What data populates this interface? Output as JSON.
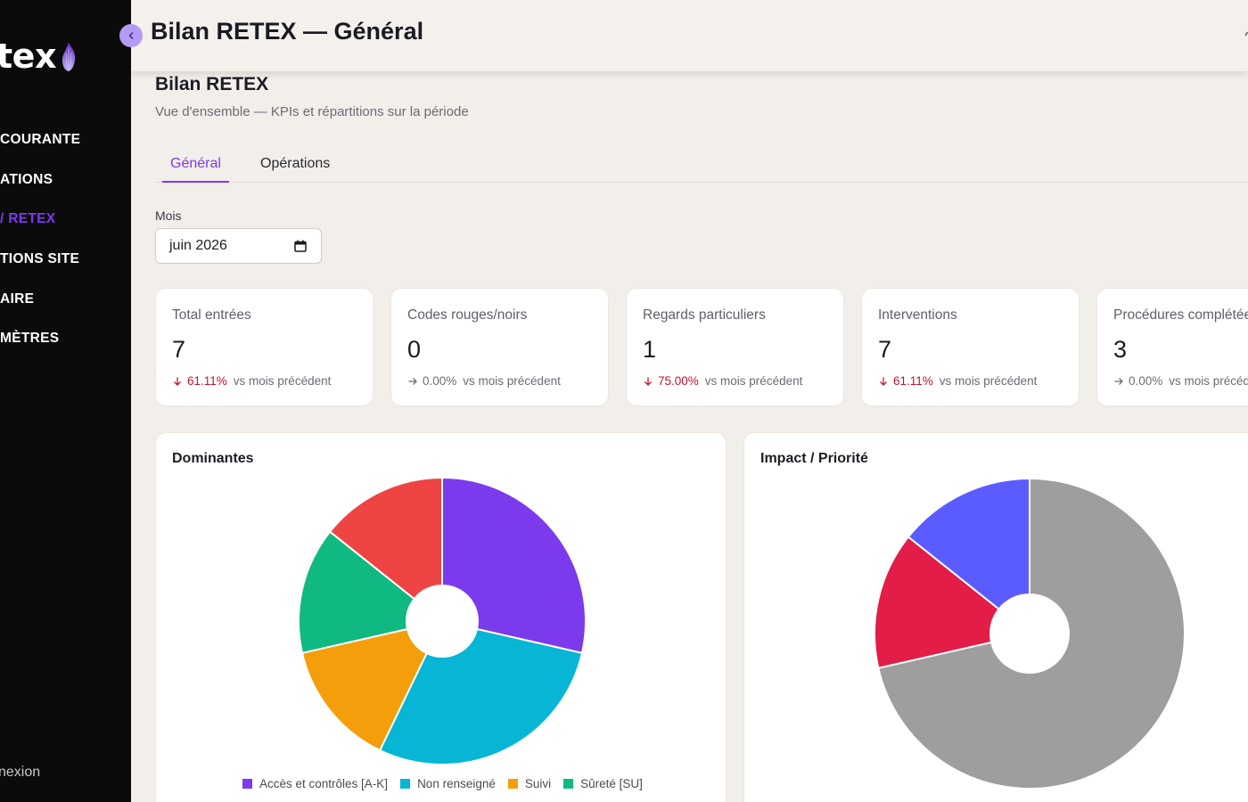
{
  "app": {
    "logo_text": "tex"
  },
  "sidebar": {
    "items": [
      {
        "label": "COURANTE",
        "active": false
      },
      {
        "label": "ATIONS",
        "active": false
      },
      {
        "label": "/ RETEX",
        "active": true
      },
      {
        "label": "TIONS SITE",
        "active": false
      },
      {
        "label": "AIRE",
        "active": false
      },
      {
        "label": "MÈTRES",
        "active": false
      }
    ],
    "logout_label": "nexion"
  },
  "header": {
    "title": "Bilan RETEX — Général"
  },
  "page": {
    "title": "Bilan RETEX",
    "subtitle": "Vue d'ensemble — KPIs et répartitions sur la période"
  },
  "tabs": [
    {
      "label": "Général",
      "active": true
    },
    {
      "label": "Opérations",
      "active": false
    }
  ],
  "filter": {
    "label": "Mois",
    "value": "juin 2026"
  },
  "kpis": [
    {
      "label": "Total entrées",
      "value": "7",
      "trend": "down",
      "pct": "61.11%",
      "context": "vs mois précédent"
    },
    {
      "label": "Codes rouges/noirs",
      "value": "0",
      "trend": "flat",
      "pct": "0.00%",
      "context": "vs mois précédent"
    },
    {
      "label": "Regards particuliers",
      "value": "1",
      "trend": "down",
      "pct": "75.00%",
      "context": "vs mois précédent"
    },
    {
      "label": "Interventions",
      "value": "7",
      "trend": "down",
      "pct": "61.11%",
      "context": "vs mois précédent"
    },
    {
      "label": "Procédures complétées",
      "value": "3",
      "trend": "flat",
      "pct": "0.00%",
      "context": "vs mois précédent"
    }
  ],
  "colors": {
    "accent": "#7c3aed",
    "trend_down": "#c8102e",
    "trend_flat": "#6b6b75"
  },
  "chart_data": [
    {
      "type": "pie",
      "title": "Dominantes",
      "donut": true,
      "legend_position": "bottom",
      "slices": [
        {
          "label": "Accès et contrôles [A-K]",
          "value": 2,
          "color": "#7c3aed"
        },
        {
          "label": "Non renseigné",
          "value": 2,
          "color": "#06b6d4"
        },
        {
          "label": "Suivi",
          "value": 1,
          "color": "#f59e0b"
        },
        {
          "label": "Sûreté [SU]",
          "value": 1,
          "color": "#10b981"
        },
        {
          "label": "",
          "value": 1,
          "color": "#ef4444"
        }
      ]
    },
    {
      "type": "pie",
      "title": "Impact / Priorité",
      "donut": true,
      "slices": [
        {
          "label": "",
          "value": 5,
          "color": "#9e9e9e"
        },
        {
          "label": "",
          "value": 1,
          "color": "#e11d48"
        },
        {
          "label": "",
          "value": 1,
          "color": "#5b5cff"
        }
      ]
    }
  ]
}
